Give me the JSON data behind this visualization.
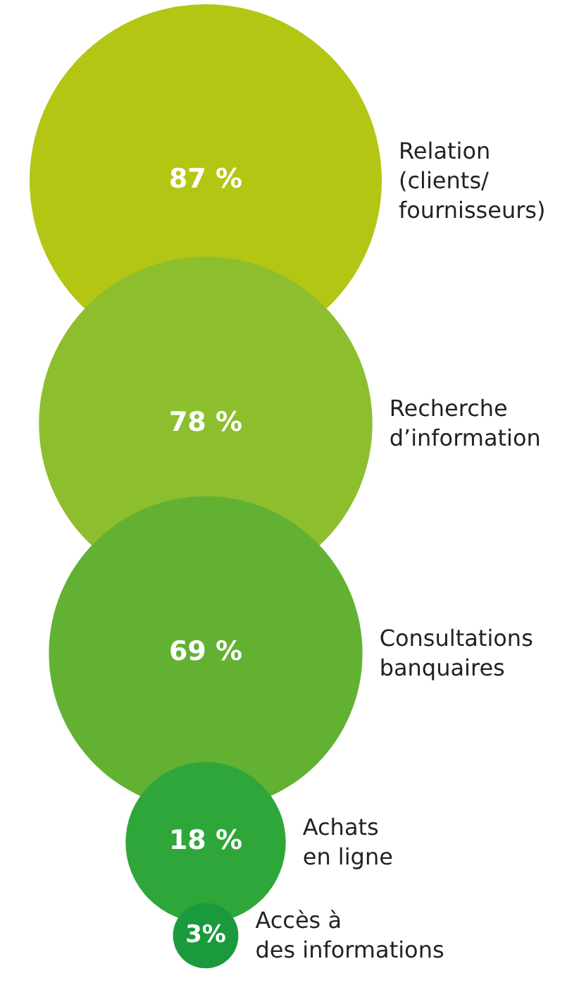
{
  "chart_data": {
    "type": "other",
    "categories": [
      "Relation\n(clients/\nfournisseurs)",
      "Recherche\nd’information",
      "Consultations\nbanquaires",
      "Achats\nen ligne",
      "Accès à\ndes informations"
    ],
    "values": [
      87,
      78,
      69,
      18,
      3
    ],
    "value_labels": [
      "87 %",
      "78 %",
      "69 %",
      "18 %",
      "3%"
    ],
    "colors": [
      "#b3c614",
      "#8dbe2e",
      "#62b133",
      "#2fa63a",
      "#1a9a3c"
    ]
  }
}
